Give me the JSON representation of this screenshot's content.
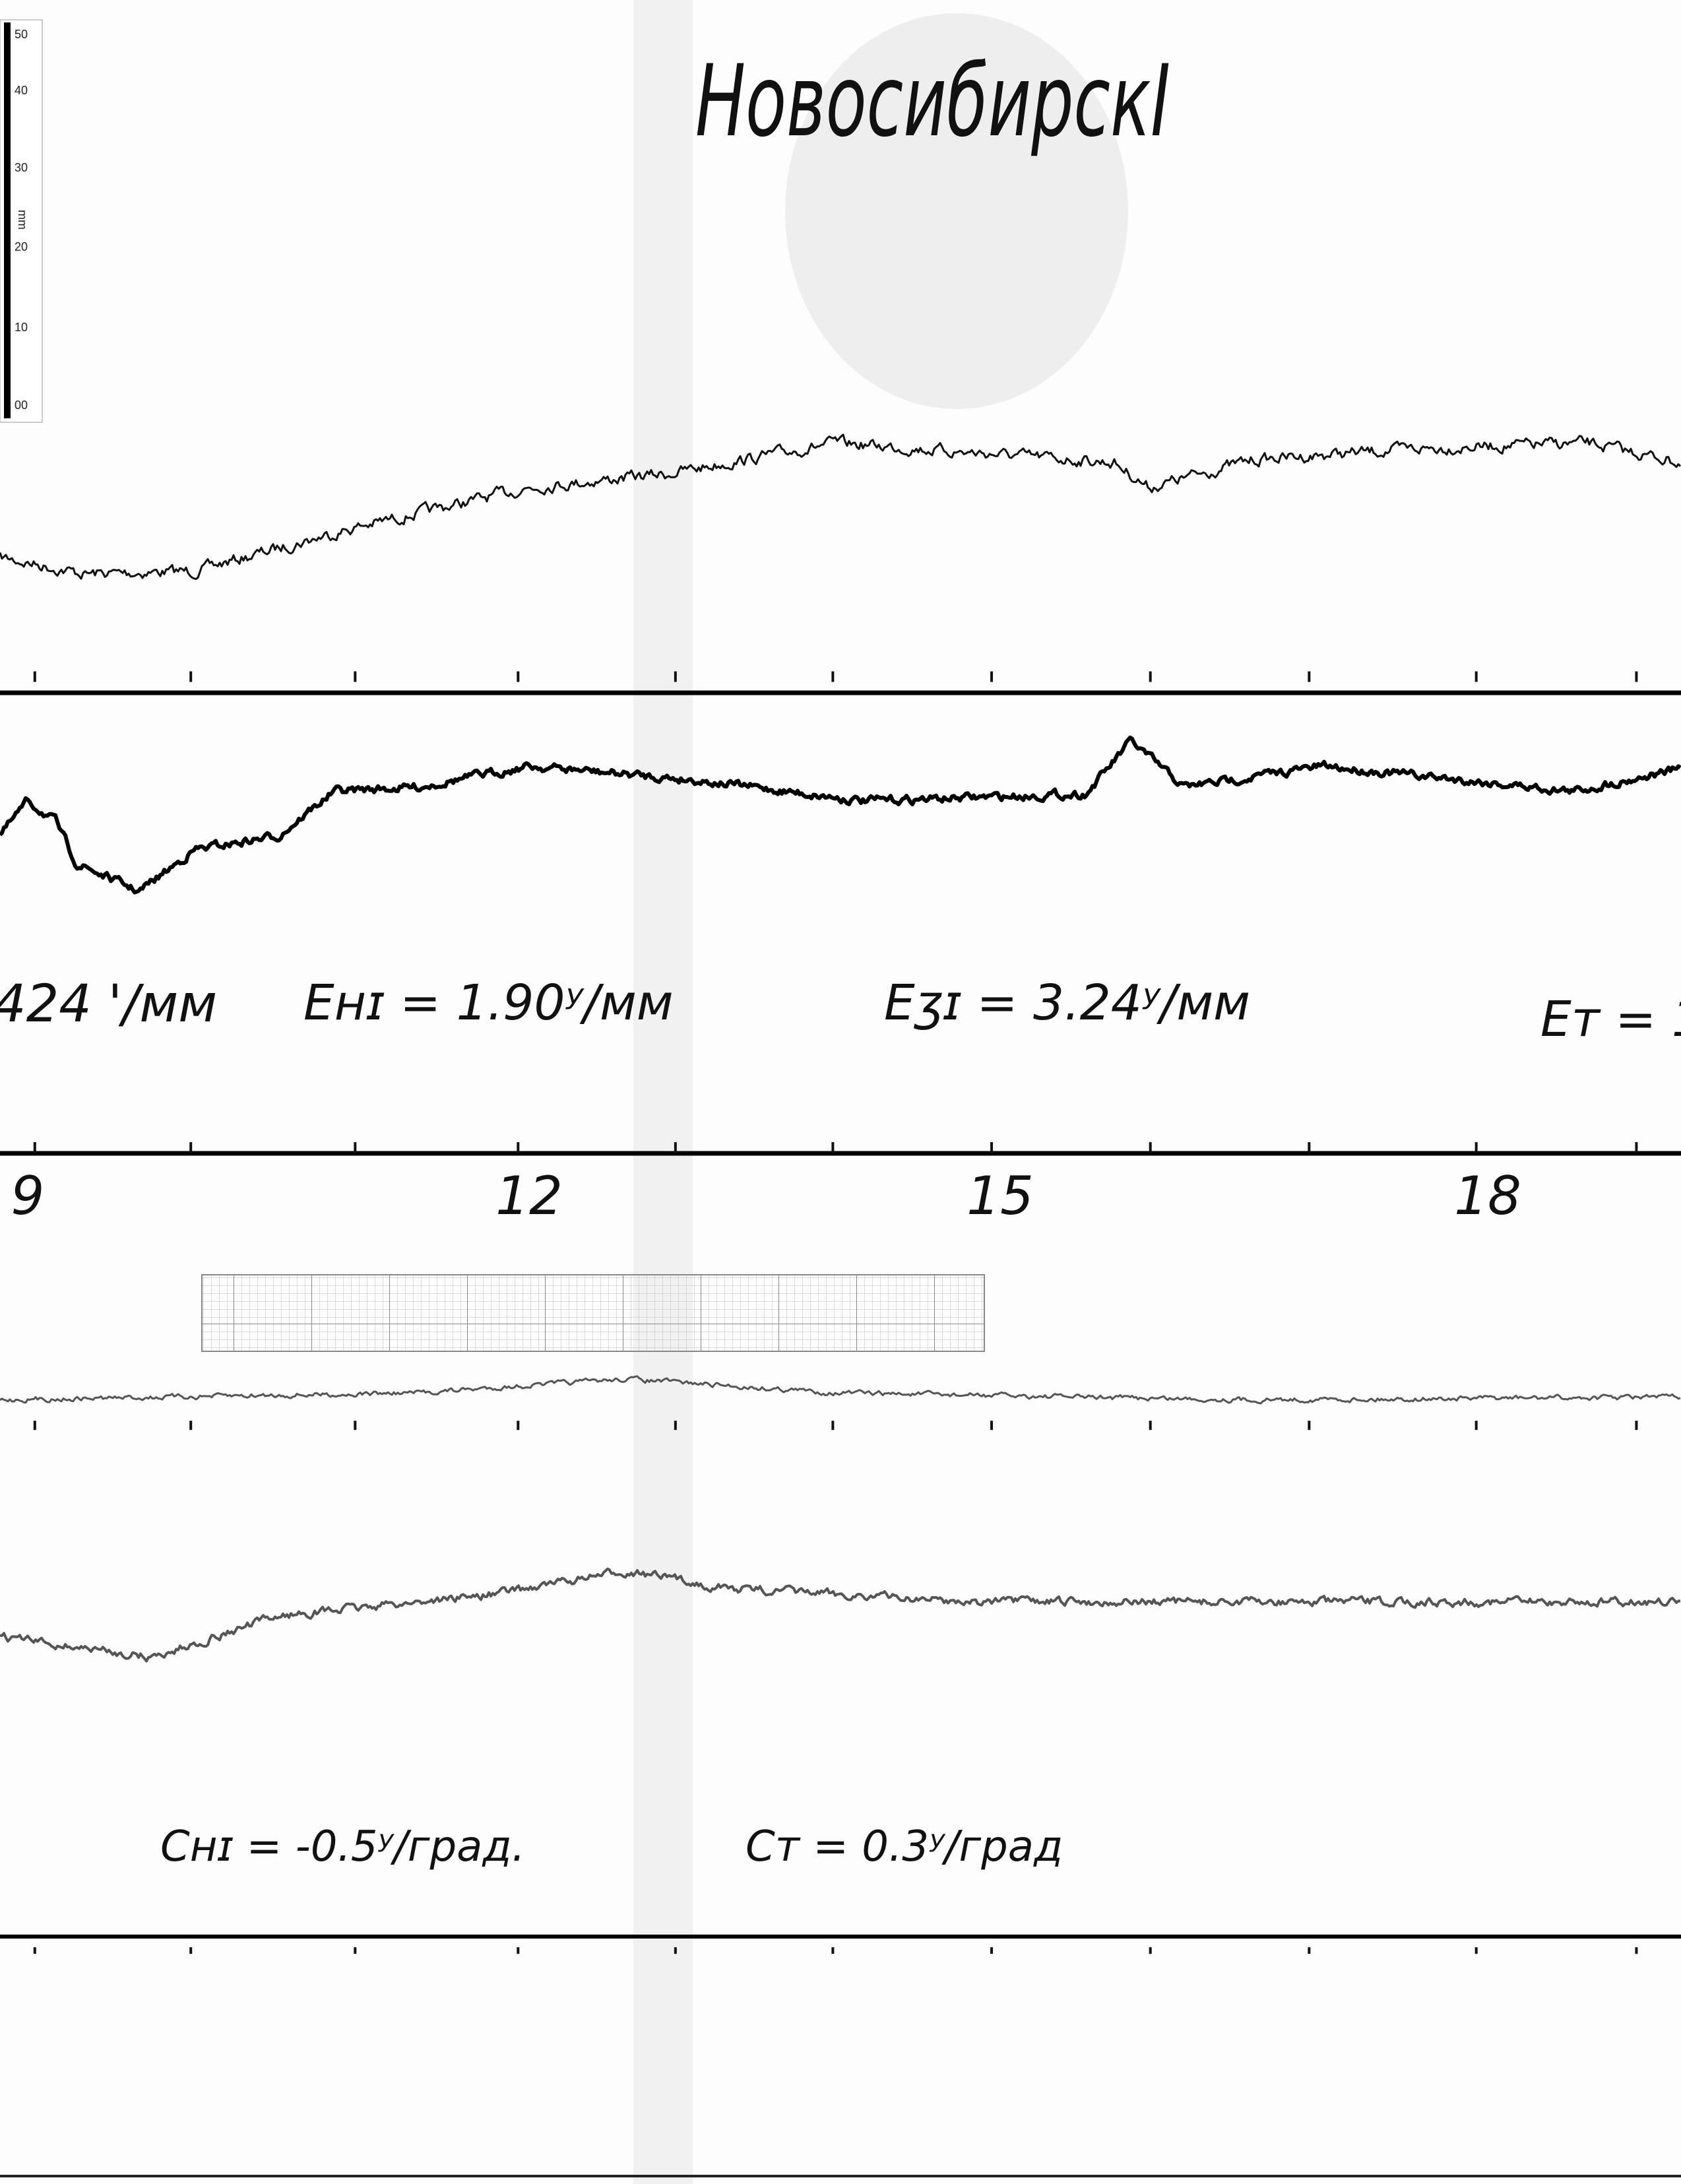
{
  "header": {
    "title": "НовосибирскI"
  },
  "scale": {
    "labels": [
      "50",
      "40",
      "30",
      "20",
      "10",
      "00"
    ],
    "unit": "mm"
  },
  "annotations": {
    "row1": [
      "424 '/мм",
      "Eнɪ = 1.90ʸ/мм",
      "Eʒɪ = 3.24ʸ/мм",
      "Eт = 1."
    ],
    "hours": [
      "9",
      "12",
      "15",
      "18"
    ],
    "row2": [
      "Cнɪ = -0.5ʸ/град.",
      "Cт = 0.3ʸ/град"
    ]
  }
}
